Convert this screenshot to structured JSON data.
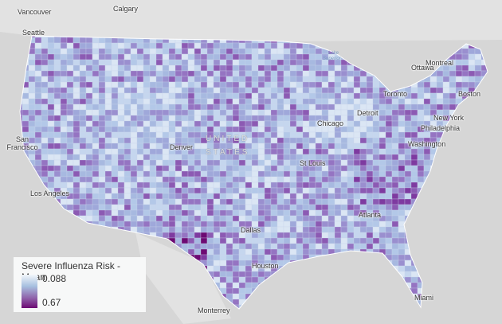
{
  "legend": {
    "title": "Severe Influenza Risk - Mean",
    "min_label": "0.088",
    "max_label": "0.67",
    "color_low": "#f2f6fb",
    "color_high": "#6d0a73"
  },
  "map": {
    "country_label": [
      "UNITED",
      "STATES"
    ],
    "water_label": [
      "Lake",
      "Superior"
    ],
    "cities": [
      "Vancouver",
      "Calgary",
      "Seattle",
      "Montreal",
      "Ottawa",
      "Toronto",
      "Boston",
      "Detroit",
      "Chicago",
      "New York",
      "Philadelphia",
      "San Francisco",
      "Denver",
      "Washington",
      "St Louis",
      "Los Angeles",
      "Atlanta",
      "Dallas",
      "Houston",
      "Miami",
      "Monterrey"
    ],
    "palette": [
      "#dbe6f4",
      "#c5d6ee",
      "#b3c8e8",
      "#a7b9e0",
      "#9fa8da",
      "#9a8fcf",
      "#9574c2",
      "#8c5ab3",
      "#7e3aa0",
      "#6d0a73"
    ]
  }
}
